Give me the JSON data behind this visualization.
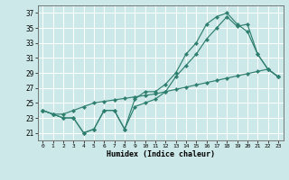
{
  "xlabel": "Humidex (Indice chaleur)",
  "ylabel": "",
  "background_color": "#cde8e8",
  "grid_color": "#ffffff",
  "line_color": "#2e7f6f",
  "xlim": [
    -0.5,
    23.5
  ],
  "ylim": [
    20.0,
    38.0
  ],
  "yticks": [
    21,
    23,
    25,
    27,
    29,
    31,
    33,
    35,
    37
  ],
  "xticks": [
    0,
    1,
    2,
    3,
    4,
    5,
    6,
    7,
    8,
    9,
    10,
    11,
    12,
    13,
    14,
    15,
    16,
    17,
    18,
    19,
    20,
    21,
    22,
    23
  ],
  "line1": [
    24,
    23.5,
    23,
    23,
    21,
    21.5,
    24,
    24,
    21.5,
    25.5,
    26.5,
    26.5,
    27.5,
    29,
    31.5,
    33,
    35.5,
    36.5,
    37,
    35.5,
    34.5,
    31.5,
    29.5,
    28.5
  ],
  "line2": [
    24,
    23.5,
    23,
    23,
    21,
    21.5,
    24,
    24,
    21.5,
    24.5,
    25,
    25.5,
    26.5,
    28.5,
    30,
    31.5,
    33.5,
    35,
    36.5,
    35.2,
    35.5,
    31.5,
    29.5,
    28.5
  ],
  "line3": [
    24,
    23.5,
    23.5,
    24,
    24.5,
    25,
    25.2,
    25.4,
    25.6,
    25.8,
    26.0,
    26.2,
    26.5,
    26.8,
    27.1,
    27.4,
    27.7,
    28.0,
    28.3,
    28.6,
    28.9,
    29.2,
    29.5,
    28.5
  ]
}
